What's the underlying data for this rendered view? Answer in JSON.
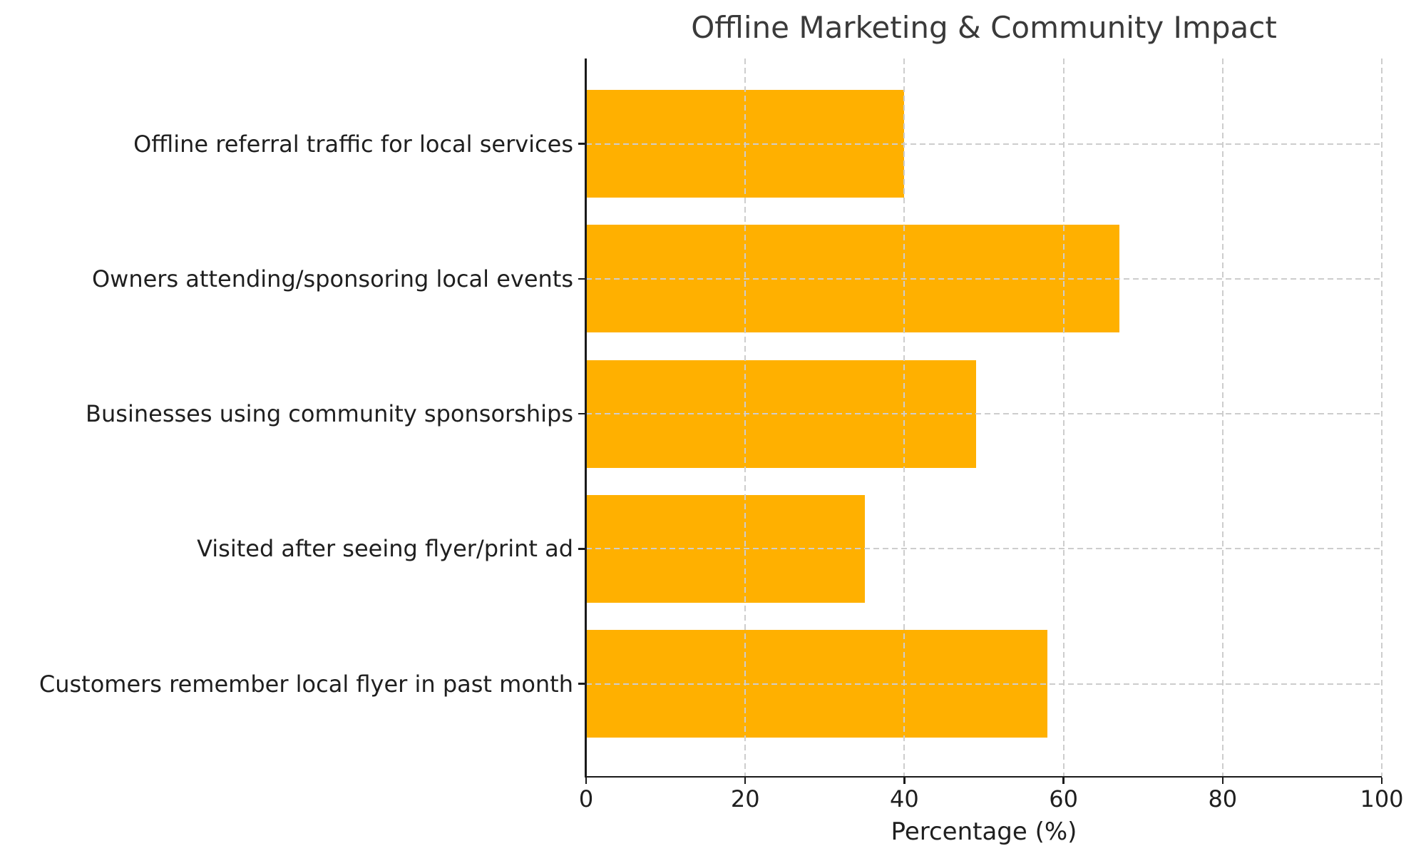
{
  "chart_data": {
    "type": "bar",
    "orientation": "horizontal",
    "title": "Offline Marketing & Community Impact",
    "categories": [
      "Offline referral traffic for local services",
      "Owners attending/sponsoring local events",
      "Businesses using community sponsorships",
      "Visited after seeing flyer/print ad",
      "Customers remember local flyer in past month"
    ],
    "values": [
      40,
      67,
      49,
      35,
      58
    ],
    "xlabel": "Percentage (%)",
    "xlim": [
      0,
      100
    ],
    "xticks": [
      "0",
      "20",
      "40",
      "60",
      "80",
      "100"
    ],
    "xtick_values": [
      0,
      20,
      40,
      60,
      80,
      100
    ],
    "grid": "dashed, both axes, drawn above bars",
    "legend": "none"
  },
  "colors": {
    "bar": "#FFB000",
    "grid": "#CDCDCD",
    "spine": "#1A1A1A",
    "title_text": "#3A3A3A",
    "label_text": "#1F1F1F",
    "background": "#FFFFFF"
  }
}
